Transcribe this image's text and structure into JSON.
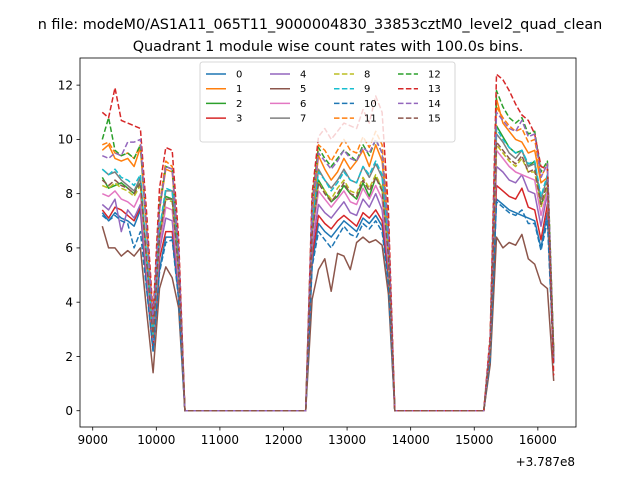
{
  "figure": {
    "suptitle": "n file: modeM0/AS1A11_065T11_9000004830_33853cztM0_level2_quad_clean",
    "title": "Quadrant 1 module wise count rates with 100.0s bins.",
    "x_offset_label": "+3.787e8"
  },
  "chart_data": {
    "type": "line",
    "title": "Quadrant 1 module wise count rates with 100.0s bins.",
    "xlabel": "",
    "ylabel": "",
    "x_offset": "+3.787e8",
    "xlim": [
      8800,
      16600
    ],
    "ylim": [
      -0.6,
      13.0
    ],
    "xticks": [
      9000,
      10000,
      11000,
      12000,
      13000,
      14000,
      15000,
      16000
    ],
    "yticks": [
      0,
      2,
      4,
      6,
      8,
      10,
      12
    ],
    "grid": false,
    "legend": {
      "location": "top-center",
      "columns": 4
    },
    "x": [
      9150,
      9250,
      9350,
      9450,
      9550,
      9650,
      9750,
      9850,
      9950,
      10050,
      10150,
      10250,
      10350,
      10450,
      10550,
      10650,
      10750,
      10850,
      10950,
      11050,
      11150,
      11250,
      11350,
      11450,
      11550,
      11650,
      11750,
      11850,
      11950,
      12050,
      12150,
      12250,
      12350,
      12450,
      12550,
      12650,
      12750,
      12850,
      12950,
      13050,
      13150,
      13250,
      13350,
      13450,
      13550,
      13650,
      13750,
      13850,
      13950,
      14050,
      14150,
      14250,
      14350,
      14450,
      14550,
      14650,
      14750,
      14850,
      14950,
      15050,
      15150,
      15250,
      15350,
      15450,
      15550,
      15650,
      15750,
      15850,
      15950,
      16050,
      16150,
      16250
    ],
    "series": [
      {
        "name": "0",
        "color": "#1f77b4",
        "dash": "solid",
        "values": [
          7.3,
          7.0,
          7.3,
          7.1,
          7.0,
          6.8,
          7.4,
          4.5,
          2.2,
          5.2,
          6.4,
          6.4,
          4.2,
          0,
          0,
          0,
          0,
          0,
          0,
          0,
          0,
          0,
          0,
          0,
          0,
          0,
          0,
          0,
          0,
          0,
          0,
          0,
          0,
          5.4,
          6.9,
          6.6,
          6.4,
          6.7,
          7.0,
          6.8,
          6.6,
          7.1,
          6.9,
          7.2,
          6.8,
          4.8,
          0,
          0,
          0,
          0,
          0,
          0,
          0,
          0,
          0,
          0,
          0,
          0,
          0,
          0,
          0,
          2.0,
          7.8,
          7.6,
          7.4,
          7.3,
          7.2,
          7.1,
          7.0,
          6.0,
          7.3,
          1.8
        ]
      },
      {
        "name": "1",
        "color": "#ff7f0e",
        "dash": "solid",
        "values": [
          9.6,
          9.8,
          9.3,
          9.2,
          9.3,
          9.0,
          9.7,
          6.5,
          3.2,
          7.4,
          8.9,
          8.8,
          5.8,
          0,
          0,
          0,
          0,
          0,
          0,
          0,
          0,
          0,
          0,
          0,
          0,
          0,
          0,
          0,
          0,
          0,
          0,
          0,
          0,
          7.2,
          9.4,
          8.9,
          8.5,
          8.8,
          9.3,
          8.9,
          9.2,
          9.6,
          9.0,
          9.8,
          9.2,
          6.6,
          0,
          0,
          0,
          0,
          0,
          0,
          0,
          0,
          0,
          0,
          0,
          0,
          0,
          0,
          0,
          2.5,
          11.5,
          10.6,
          10.3,
          10.0,
          9.9,
          9.5,
          9.6,
          8.4,
          8.6,
          2.2
        ]
      },
      {
        "name": "2",
        "color": "#2ca02c",
        "dash": "solid",
        "values": [
          8.6,
          8.2,
          8.3,
          8.4,
          8.2,
          8.0,
          8.6,
          5.5,
          2.7,
          6.4,
          7.9,
          7.8,
          5.1,
          0,
          0,
          0,
          0,
          0,
          0,
          0,
          0,
          0,
          0,
          0,
          0,
          0,
          0,
          0,
          0,
          0,
          0,
          0,
          0,
          6.4,
          8.5,
          8.1,
          7.7,
          7.9,
          8.3,
          8.0,
          7.8,
          8.4,
          7.9,
          8.6,
          8.2,
          5.8,
          0,
          0,
          0,
          0,
          0,
          0,
          0,
          0,
          0,
          0,
          0,
          0,
          0,
          0,
          0,
          2.3,
          10.5,
          10.1,
          9.7,
          9.5,
          9.6,
          9.0,
          9.2,
          7.6,
          8.1,
          2.0
        ]
      },
      {
        "name": "3",
        "color": "#d62728",
        "dash": "solid",
        "values": [
          7.4,
          7.1,
          7.5,
          7.4,
          7.2,
          7.0,
          7.5,
          4.7,
          2.3,
          5.6,
          6.6,
          6.6,
          4.4,
          0,
          0,
          0,
          0,
          0,
          0,
          0,
          0,
          0,
          0,
          0,
          0,
          0,
          0,
          0,
          0,
          0,
          0,
          0,
          0,
          5.7,
          7.2,
          6.9,
          6.7,
          7.0,
          7.2,
          7.0,
          6.8,
          7.3,
          7.1,
          7.4,
          7.0,
          5.0,
          0,
          0,
          0,
          0,
          0,
          0,
          0,
          0,
          0,
          0,
          0,
          0,
          0,
          0,
          0,
          2.1,
          8.3,
          8.1,
          7.9,
          7.8,
          8.2,
          7.5,
          7.4,
          6.3,
          7.6,
          1.8
        ]
      },
      {
        "name": "4",
        "color": "#9467bd",
        "dash": "solid",
        "values": [
          7.6,
          7.4,
          7.8,
          6.6,
          7.4,
          7.1,
          7.6,
          4.9,
          2.6,
          5.9,
          7.1,
          7.0,
          4.6,
          0,
          0,
          0,
          0,
          0,
          0,
          0,
          0,
          0,
          0,
          0,
          0,
          0,
          0,
          0,
          0,
          0,
          0,
          0,
          0,
          6.0,
          7.6,
          7.3,
          7.1,
          7.4,
          7.7,
          7.3,
          7.2,
          7.8,
          7.5,
          8.0,
          7.4,
          5.3,
          0,
          0,
          0,
          0,
          0,
          0,
          0,
          0,
          0,
          0,
          0,
          0,
          0,
          0,
          0,
          2.1,
          9.0,
          8.8,
          8.5,
          8.4,
          8.7,
          8.1,
          8.0,
          6.8,
          8.0,
          1.9
        ]
      },
      {
        "name": "5",
        "color": "#8c564b",
        "dash": "solid",
        "values": [
          6.8,
          6.0,
          6.0,
          5.7,
          5.9,
          5.7,
          6.0,
          3.6,
          1.4,
          4.5,
          5.3,
          4.9,
          3.8,
          0,
          0,
          0,
          0,
          0,
          0,
          0,
          0,
          0,
          0,
          0,
          0,
          0,
          0,
          0,
          0,
          0,
          0,
          0,
          0,
          4.1,
          5.2,
          5.6,
          4.4,
          5.8,
          5.7,
          5.2,
          6.2,
          6.4,
          6.2,
          6.3,
          6.1,
          4.3,
          0,
          0,
          0,
          0,
          0,
          0,
          0,
          0,
          0,
          0,
          0,
          0,
          0,
          0,
          0,
          1.7,
          6.4,
          6.0,
          6.2,
          6.1,
          6.5,
          5.6,
          5.4,
          4.7,
          4.5,
          1.1
        ]
      },
      {
        "name": "6",
        "color": "#e377c2",
        "dash": "solid",
        "values": [
          8.0,
          7.9,
          8.1,
          7.8,
          7.7,
          7.5,
          8.0,
          5.2,
          2.6,
          6.1,
          7.5,
          7.4,
          4.9,
          0,
          0,
          0,
          0,
          0,
          0,
          0,
          0,
          0,
          0,
          0,
          0,
          0,
          0,
          0,
          0,
          0,
          0,
          0,
          0,
          6.3,
          8.1,
          7.8,
          7.5,
          7.8,
          8.1,
          7.7,
          7.6,
          8.2,
          7.8,
          8.3,
          7.8,
          5.5,
          0,
          0,
          0,
          0,
          0,
          0,
          0,
          0,
          0,
          0,
          0,
          0,
          0,
          0,
          0,
          2.2,
          9.6,
          9.3,
          9.0,
          8.8,
          8.7,
          8.6,
          8.5,
          7.2,
          8.1,
          2.0
        ]
      },
      {
        "name": "7",
        "color": "#7f7f7f",
        "dash": "solid",
        "values": [
          8.9,
          8.7,
          8.8,
          8.5,
          8.3,
          8.1,
          8.6,
          5.6,
          2.8,
          6.6,
          8.1,
          8.1,
          5.3,
          0,
          0,
          0,
          0,
          0,
          0,
          0,
          0,
          0,
          0,
          0,
          0,
          0,
          0,
          0,
          0,
          0,
          0,
          0,
          0,
          6.8,
          8.9,
          8.5,
          8.2,
          8.5,
          8.9,
          8.5,
          8.4,
          9.0,
          8.6,
          9.1,
          8.6,
          6.1,
          0,
          0,
          0,
          0,
          0,
          0,
          0,
          0,
          0,
          0,
          0,
          0,
          0,
          0,
          0,
          2.3,
          10.2,
          9.9,
          9.5,
          9.3,
          9.6,
          9.0,
          9.1,
          7.8,
          8.6,
          2.0
        ]
      },
      {
        "name": "8",
        "color": "#bcbd22",
        "dash": "dashed",
        "values": [
          8.3,
          8.2,
          8.4,
          8.2,
          8.1,
          7.9,
          8.3,
          5.4,
          2.7,
          6.4,
          7.8,
          7.7,
          5.1,
          0,
          0,
          0,
          0,
          0,
          0,
          0,
          0,
          0,
          0,
          0,
          0,
          0,
          0,
          0,
          0,
          0,
          0,
          0,
          0,
          6.6,
          8.4,
          8.1,
          7.8,
          8.2,
          8.5,
          8.1,
          8.0,
          8.6,
          8.2,
          8.7,
          8.2,
          5.8,
          0,
          0,
          0,
          0,
          0,
          0,
          0,
          0,
          0,
          0,
          0,
          0,
          0,
          0,
          0,
          2.2,
          9.8,
          9.5,
          9.2,
          9.0,
          9.3,
          8.8,
          8.8,
          7.5,
          8.3,
          2.0
        ]
      },
      {
        "name": "9",
        "color": "#17becf",
        "dash": "dashed",
        "values": [
          8.9,
          8.7,
          8.9,
          8.6,
          8.5,
          8.3,
          8.7,
          5.6,
          2.8,
          6.7,
          8.2,
          8.1,
          5.3,
          0,
          0,
          0,
          0,
          0,
          0,
          0,
          0,
          0,
          0,
          0,
          0,
          0,
          0,
          0,
          0,
          0,
          0,
          0,
          0,
          6.9,
          8.8,
          8.5,
          8.1,
          8.4,
          8.8,
          8.5,
          8.4,
          9.0,
          8.7,
          9.2,
          8.7,
          6.1,
          0,
          0,
          0,
          0,
          0,
          0,
          0,
          0,
          0,
          0,
          0,
          0,
          0,
          0,
          0,
          2.4,
          10.4,
          10.0,
          9.7,
          9.5,
          9.6,
          9.1,
          9.2,
          7.9,
          8.7,
          2.1
        ]
      },
      {
        "name": "10",
        "color": "#1f77b4",
        "dash": "dashed",
        "values": [
          7.2,
          7.0,
          7.2,
          7.0,
          6.9,
          6.0,
          6.6,
          4.4,
          2.2,
          5.1,
          6.2,
          6.3,
          4.1,
          0,
          0,
          0,
          0,
          0,
          0,
          0,
          0,
          0,
          0,
          0,
          0,
          0,
          0,
          0,
          0,
          0,
          0,
          0,
          0,
          5.3,
          6.6,
          6.3,
          6.0,
          6.4,
          6.8,
          6.5,
          6.4,
          6.9,
          6.7,
          7.0,
          6.6,
          4.7,
          0,
          0,
          0,
          0,
          0,
          0,
          0,
          0,
          0,
          0,
          0,
          0,
          0,
          0,
          0,
          1.9,
          7.7,
          7.5,
          7.3,
          7.2,
          7.4,
          6.9,
          6.9,
          5.9,
          7.0,
          1.7
        ]
      },
      {
        "name": "11",
        "color": "#ff7f0e",
        "dash": "dashed",
        "values": [
          9.8,
          9.9,
          9.5,
          9.4,
          9.5,
          9.3,
          9.8,
          6.7,
          3.4,
          7.6,
          9.2,
          9.0,
          6.0,
          0,
          0,
          0,
          0,
          0,
          0,
          0,
          0,
          0,
          0,
          0,
          0,
          0,
          0,
          0,
          0,
          0,
          0,
          0,
          0,
          7.7,
          9.8,
          9.6,
          9.2,
          9.6,
          10.0,
          9.6,
          9.5,
          10.1,
          9.7,
          10.3,
          9.8,
          6.9,
          0,
          0,
          0,
          0,
          0,
          0,
          0,
          0,
          0,
          0,
          0,
          0,
          0,
          0,
          0,
          2.6,
          11.2,
          10.8,
          10.5,
          10.3,
          10.4,
          9.9,
          10.0,
          8.6,
          9.1,
          2.2
        ]
      },
      {
        "name": "12",
        "color": "#2ca02c",
        "dash": "dashed",
        "values": [
          10.0,
          10.8,
          9.6,
          9.4,
          9.5,
          9.3,
          9.8,
          6.6,
          3.3,
          7.5,
          9.0,
          8.9,
          5.9,
          0,
          0,
          0,
          0,
          0,
          0,
          0,
          0,
          0,
          0,
          0,
          0,
          0,
          0,
          0,
          0,
          0,
          0,
          0,
          0,
          7.6,
          9.7,
          9.3,
          9.0,
          9.3,
          9.6,
          9.4,
          9.2,
          9.8,
          9.4,
          10.0,
          9.5,
          6.7,
          0,
          0,
          0,
          0,
          0,
          0,
          0,
          0,
          0,
          0,
          0,
          0,
          0,
          0,
          0,
          2.6,
          11.8,
          11.2,
          10.8,
          10.6,
          10.8,
          10.2,
          10.3,
          8.8,
          9.2,
          2.2
        ]
      },
      {
        "name": "13",
        "color": "#d62728",
        "dash": "dashed",
        "values": [
          11.0,
          10.8,
          11.9,
          10.7,
          10.6,
          10.5,
          10.4,
          7.2,
          3.5,
          8.2,
          9.7,
          9.6,
          6.4,
          0,
          0,
          0,
          0,
          0,
          0,
          0,
          0,
          0,
          0,
          0,
          0,
          0,
          0,
          0,
          0,
          0,
          0,
          0,
          0,
          8.0,
          10.1,
          10.4,
          10.0,
          10.3,
          10.6,
          10.5,
          10.4,
          11.1,
          10.6,
          11.6,
          11.0,
          7.4,
          0,
          0,
          0,
          0,
          0,
          0,
          0,
          0,
          0,
          0,
          0,
          0,
          0,
          0,
          0,
          2.8,
          12.4,
          12.2,
          11.8,
          11.3,
          10.9,
          10.7,
          10.2,
          9.0,
          8.9,
          1.3
        ]
      },
      {
        "name": "14",
        "color": "#9467bd",
        "dash": "dashed",
        "values": [
          9.4,
          9.3,
          9.5,
          9.4,
          9.9,
          9.9,
          10.0,
          6.6,
          3.2,
          7.4,
          9.0,
          8.9,
          5.9,
          0,
          0,
          0,
          0,
          0,
          0,
          0,
          0,
          0,
          0,
          0,
          0,
          0,
          0,
          0,
          0,
          0,
          0,
          0,
          0,
          7.5,
          9.5,
          9.2,
          8.9,
          9.2,
          9.6,
          9.3,
          9.2,
          9.7,
          9.5,
          10.0,
          9.5,
          6.6,
          0,
          0,
          0,
          0,
          0,
          0,
          0,
          0,
          0,
          0,
          0,
          0,
          0,
          0,
          0,
          2.5,
          11.0,
          10.7,
          10.4,
          10.3,
          10.7,
          10.1,
          10.2,
          8.6,
          9.1,
          2.1
        ]
      },
      {
        "name": "15",
        "color": "#8c564b",
        "dash": "dashed",
        "values": [
          8.5,
          8.3,
          8.5,
          8.3,
          8.2,
          8.0,
          8.4,
          5.4,
          2.7,
          6.4,
          7.8,
          7.8,
          5.1,
          0,
          0,
          0,
          0,
          0,
          0,
          0,
          0,
          0,
          0,
          0,
          0,
          0,
          0,
          0,
          0,
          0,
          0,
          0,
          0,
          6.5,
          8.4,
          8.0,
          7.7,
          8.0,
          8.4,
          8.0,
          7.9,
          8.5,
          8.1,
          8.6,
          8.1,
          5.7,
          0,
          0,
          0,
          0,
          0,
          0,
          0,
          0,
          0,
          0,
          0,
          0,
          0,
          0,
          0,
          2.2,
          9.9,
          9.6,
          9.3,
          9.1,
          9.4,
          8.8,
          8.9,
          7.6,
          8.4,
          2.0
        ]
      }
    ]
  }
}
